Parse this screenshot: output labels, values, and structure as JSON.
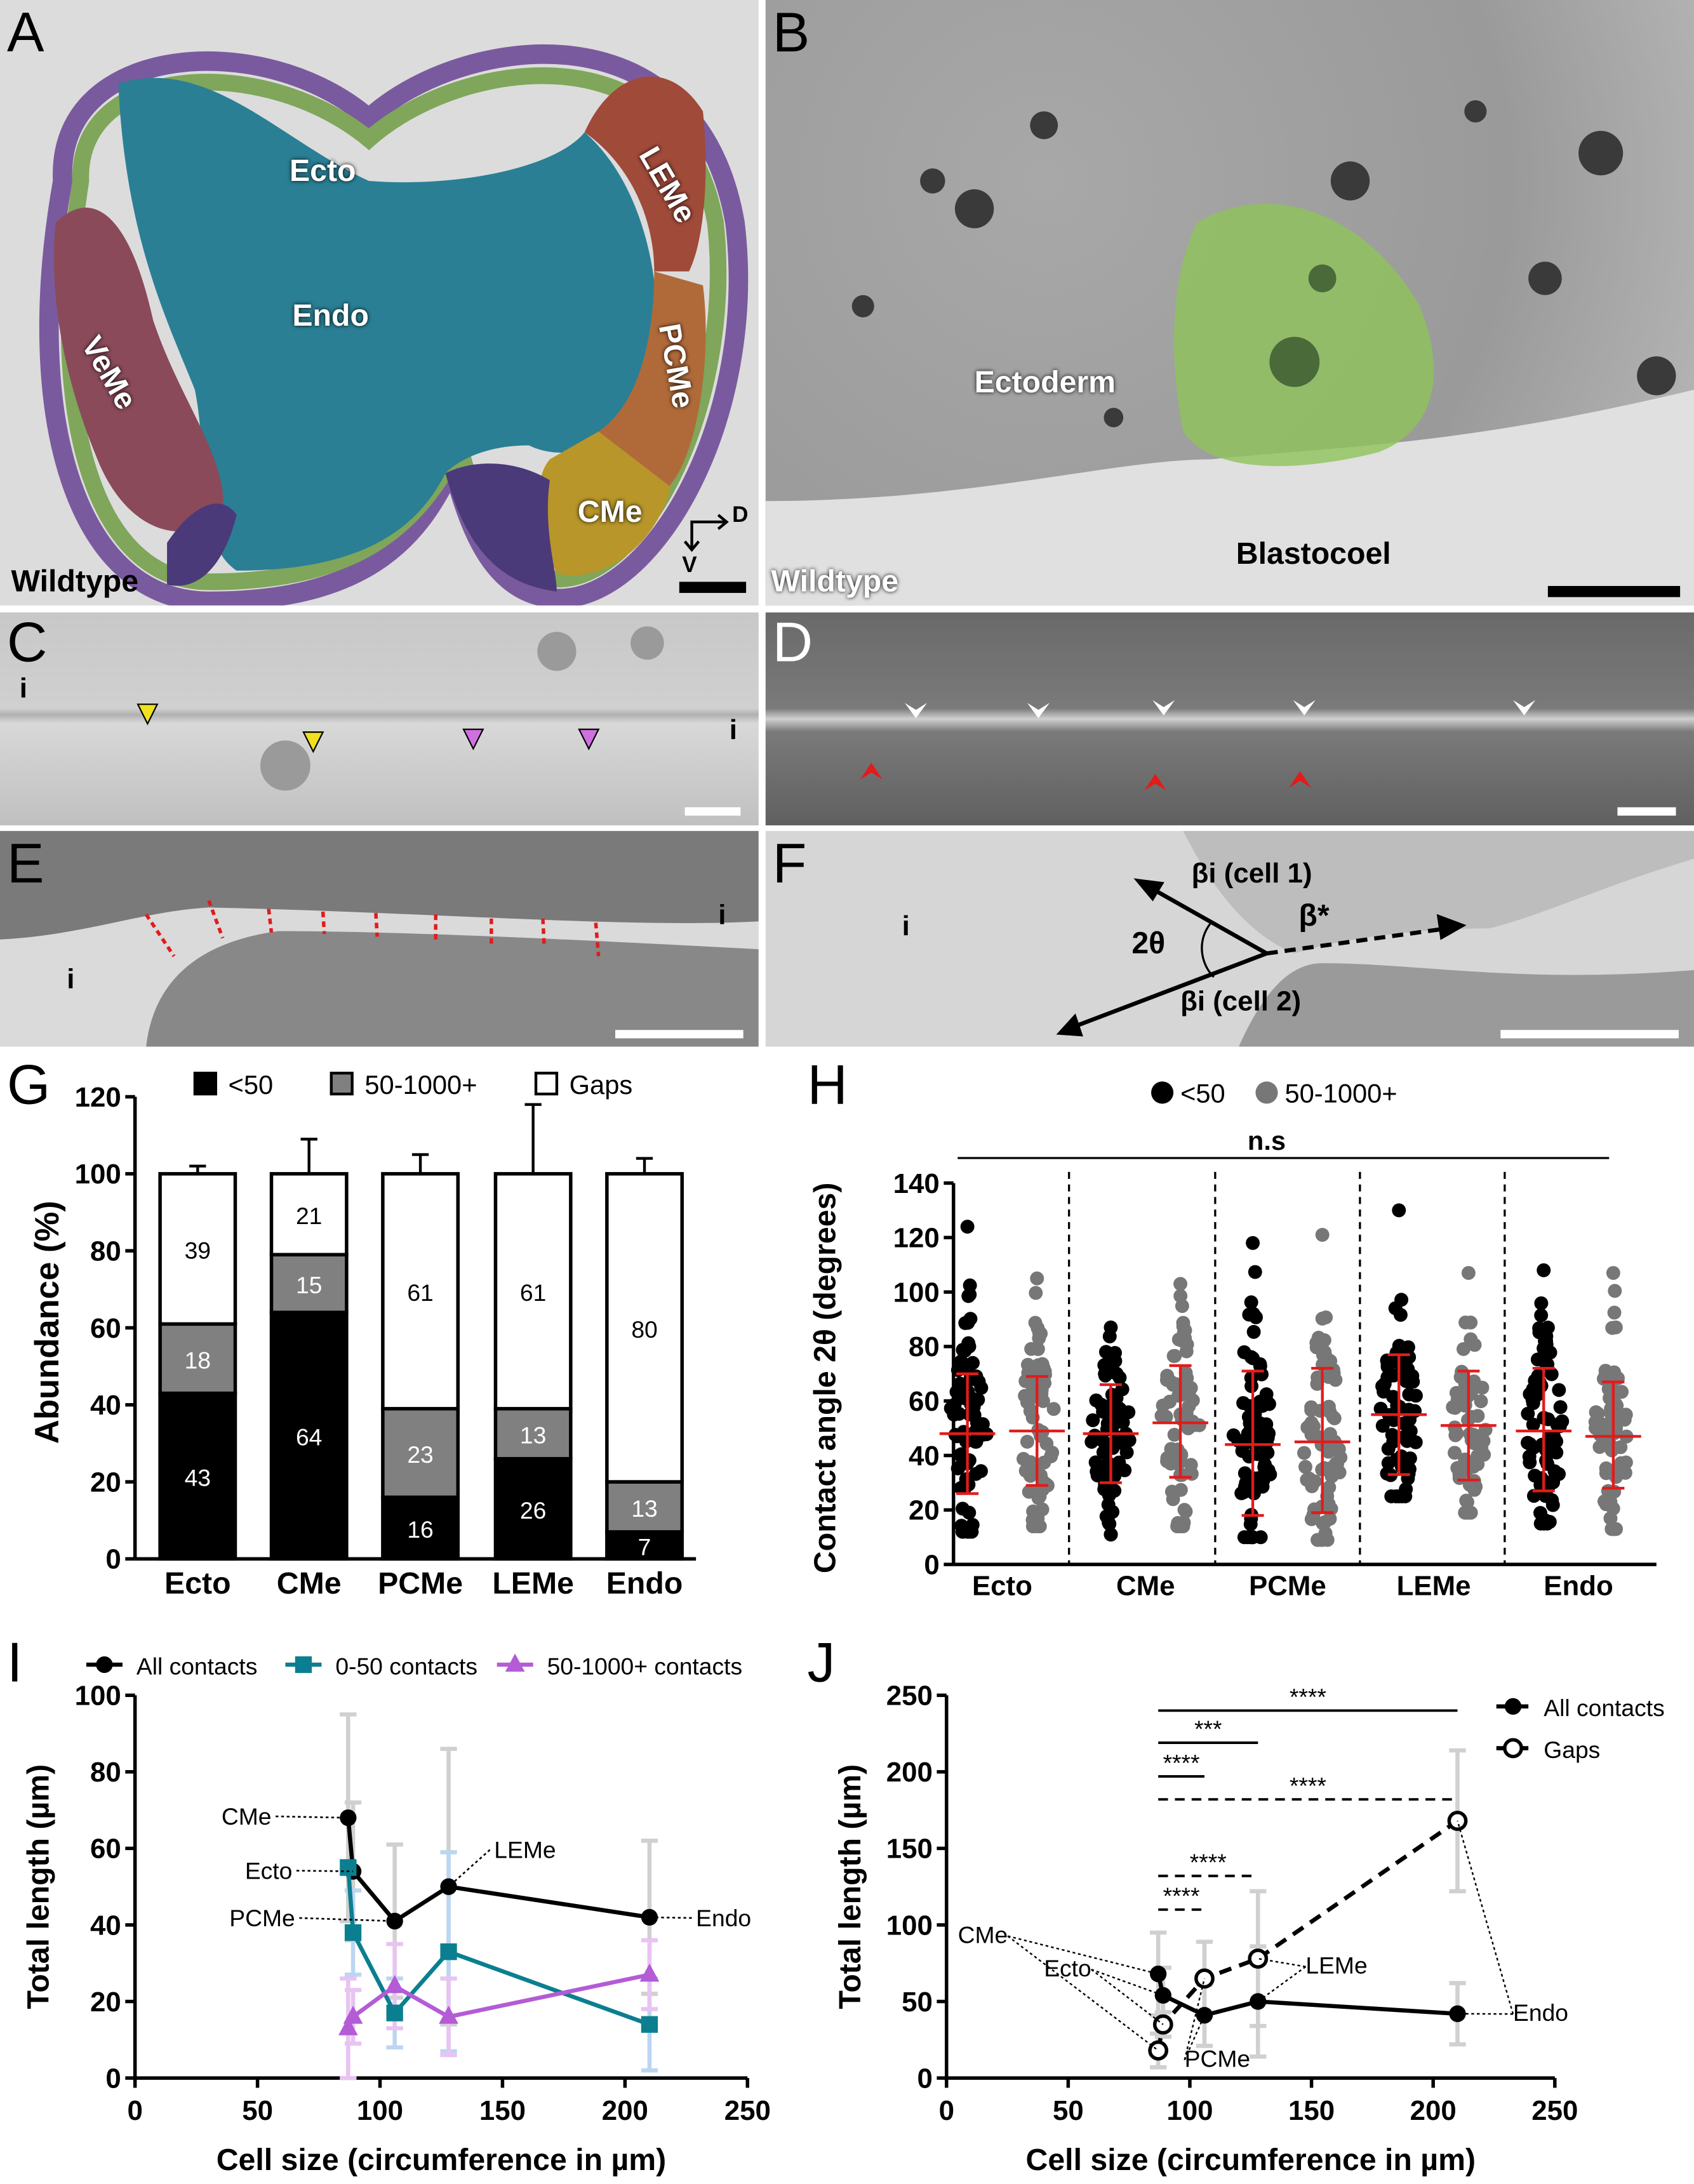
{
  "panels": {
    "A": {
      "letter": "A",
      "labels": {
        "ecto": "Ecto",
        "leme": "LEMe",
        "endo": "Endo",
        "pcme": "PCMe",
        "veme": "VeMe",
        "cme": "CMe",
        "condition": "Wildtype",
        "axis_d": "D",
        "axis_v": "V"
      }
    },
    "B": {
      "letter": "B",
      "labels": {
        "ectoderm": "Ectoderm",
        "blastocoel": "Blastocoel",
        "condition": "Wildtype"
      }
    },
    "C": {
      "letter": "C",
      "labels": {
        "i_left": "i",
        "i_right": "i"
      }
    },
    "D": {
      "letter": "D"
    },
    "E": {
      "letter": "E",
      "labels": {
        "i_left": "i",
        "i_right": "i"
      }
    },
    "F": {
      "letter": "F",
      "labels": {
        "i": "i",
        "two_theta": "2θ",
        "beta_cell1": "βi (cell 1)",
        "beta_star": "β*",
        "beta_cell2": "βi (cell 2)"
      }
    },
    "G": {
      "letter": "G"
    },
    "H": {
      "letter": "H"
    },
    "I": {
      "letter": "I"
    },
    "J": {
      "letter": "J"
    }
  },
  "colors": {
    "ecto": "#7fa65a",
    "outer": "#7a5a9e",
    "endo": "#2a7f95",
    "leme": "#a04a3a",
    "pcme": "#b06a3a",
    "cme": "#b8962a",
    "veme": "#8a4a5a",
    "blastomere": "#8fc35a",
    "teal": "#0b7f8f",
    "purple": "#b45bd6",
    "red": "#e21b1b"
  },
  "chart_data": [
    {
      "id": "G",
      "type": "bar",
      "stacked": true,
      "categories": [
        "Ecto",
        "CMe",
        "PCMe",
        "LEMe",
        "Endo"
      ],
      "ylabel": "Abundance (%)",
      "ylim": [
        0,
        120
      ],
      "yticks": [
        0,
        20,
        40,
        60,
        80,
        100,
        120
      ],
      "legend": [
        "<50",
        "50-1000+",
        "Gaps"
      ],
      "legend_placement": "top",
      "series": [
        {
          "name": "<50",
          "values": [
            43,
            64,
            16,
            26,
            7
          ],
          "err_top": [
            46,
            67,
            20,
            38,
            11
          ],
          "color": "#000000"
        },
        {
          "name": "50-1000+",
          "values": [
            18,
            15,
            23,
            13,
            13
          ],
          "err_top": [
            65,
            91,
            43,
            44,
            21
          ],
          "color": "#808080"
        },
        {
          "name": "Gaps",
          "values": [
            39,
            21,
            61,
            61,
            80
          ],
          "err_top": [
            102,
            109,
            105,
            118,
            104
          ],
          "color": "#ffffff"
        }
      ]
    },
    {
      "id": "H",
      "type": "scatter",
      "categories": [
        "Ecto",
        "CMe",
        "PCMe",
        "LEMe",
        "Endo"
      ],
      "ylabel": "Contact angle 2θ (degrees)",
      "ylim": [
        0,
        140
      ],
      "yticks": [
        0,
        20,
        40,
        60,
        80,
        100,
        120,
        140
      ],
      "legend": [
        "<50",
        "50-1000+"
      ],
      "significance": "n.s",
      "series": [
        {
          "name": "<50",
          "color": "#000000",
          "mean": [
            48,
            48,
            44,
            55,
            49
          ],
          "sd_low": [
            26,
            30,
            18,
            33,
            27
          ],
          "sd_high": [
            70,
            66,
            71,
            77,
            72
          ],
          "max": [
            124,
            87,
            118,
            130,
            108
          ],
          "min": [
            12,
            11,
            10,
            25,
            15
          ]
        },
        {
          "name": "50-1000+",
          "color": "#777777",
          "mean": [
            49,
            52,
            45,
            51,
            47
          ],
          "sd_low": [
            29,
            32,
            19,
            31,
            28
          ],
          "sd_high": [
            69,
            73,
            72,
            71,
            67
          ],
          "max": [
            105,
            103,
            121,
            107,
            107
          ],
          "min": [
            14,
            14,
            9,
            19,
            13
          ]
        }
      ]
    },
    {
      "id": "I",
      "type": "line",
      "xlabel": "Cell size (circumference in µm)",
      "ylabel": "Total length (µm)",
      "xlim": [
        0,
        250
      ],
      "ylim": [
        0,
        100
      ],
      "xticks": [
        0,
        50,
        100,
        150,
        200,
        250
      ],
      "yticks": [
        0,
        20,
        40,
        60,
        80,
        100
      ],
      "point_labels": [
        "CMe",
        "Ecto",
        "PCMe",
        "LEMe",
        "Endo"
      ],
      "x": [
        87,
        89,
        106,
        128,
        210
      ],
      "series": [
        {
          "name": "All contacts",
          "values": [
            68,
            54,
            41,
            50,
            42
          ],
          "err": [
            27,
            18,
            20,
            36,
            20
          ],
          "color": "#000000",
          "marker": "circle"
        },
        {
          "name": "0-50 contacts",
          "values": [
            55,
            38,
            17,
            33,
            14
          ],
          "err": [
            0,
            11,
            9,
            26,
            12
          ],
          "color": "#0b7f8f",
          "marker": "square"
        },
        {
          "name": "50-1000+ contacts",
          "values": [
            13,
            16,
            24,
            16,
            27
          ],
          "err": [
            13,
            7,
            11,
            10,
            9
          ],
          "color": "#b45bd6",
          "marker": "triangle"
        }
      ]
    },
    {
      "id": "J",
      "type": "line",
      "xlabel": "Cell size (circumference in µm)",
      "ylabel": "Total length (µm)",
      "xlim": [
        0,
        250
      ],
      "ylim": [
        0,
        250
      ],
      "xticks": [
        0,
        50,
        100,
        150,
        200,
        250
      ],
      "yticks": [
        0,
        50,
        100,
        150,
        200,
        250
      ],
      "point_labels": [
        "CMe",
        "Ecto",
        "PCMe",
        "LEMe",
        "Endo"
      ],
      "x": [
        87,
        89,
        106,
        128,
        210
      ],
      "series": [
        {
          "name": "All contacts",
          "values": [
            68,
            54,
            41,
            50,
            42
          ],
          "err": [
            27,
            18,
            20,
            36,
            20
          ],
          "color": "#000000",
          "marker": "circle",
          "dash": false
        },
        {
          "name": "Gaps",
          "values": [
            18,
            35,
            65,
            78,
            168
          ],
          "err": [
            11,
            8,
            24,
            44,
            46
          ],
          "color": "#000000",
          "marker": "open-circle",
          "dash": true
        }
      ],
      "significance": [
        {
          "from": 87,
          "to": 210,
          "y": 240,
          "label": "****",
          "dash": false
        },
        {
          "from": 87,
          "to": 128,
          "y": 219,
          "label": "***",
          "dash": false
        },
        {
          "from": 87,
          "to": 106,
          "y": 197,
          "label": "****",
          "dash": false
        },
        {
          "from": 87,
          "to": 210,
          "y": 182,
          "label": "****",
          "dash": true
        },
        {
          "from": 87,
          "to": 128,
          "y": 132,
          "label": "****",
          "dash": true
        },
        {
          "from": 87,
          "to": 106,
          "y": 110,
          "label": "****",
          "dash": true
        }
      ]
    }
  ]
}
